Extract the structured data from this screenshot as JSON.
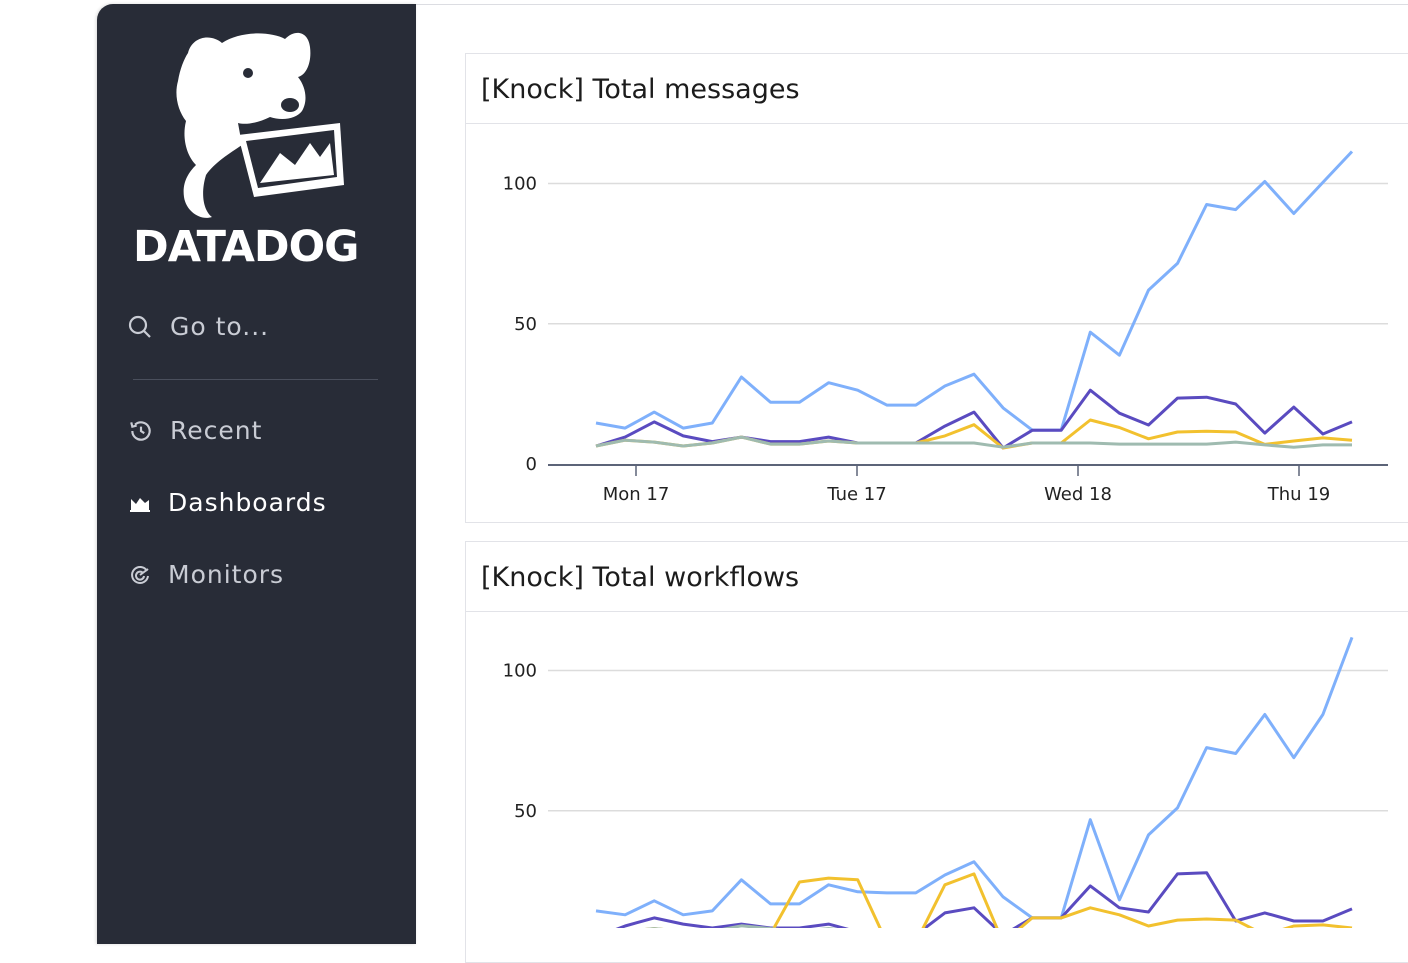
{
  "sidebar": {
    "brand": "DATADOG",
    "search_label": "Go to...",
    "items": [
      {
        "label": "Recent",
        "icon": "history-icon"
      },
      {
        "label": "Dashboards",
        "icon": "dashboard-chart-icon",
        "active": true
      },
      {
        "label": "Monitors",
        "icon": "monitor-radar-icon"
      }
    ]
  },
  "colors": {
    "series": [
      "#7fb0fb",
      "#5a4bc0",
      "#f2c12e",
      "#9fbbb0"
    ],
    "sidebar": "#282c37"
  },
  "chart_data": [
    {
      "type": "line",
      "title": "[Knock] Total messages",
      "yticks": [
        0,
        50,
        100
      ],
      "xticks": [
        "Mon 17",
        "Tue 17",
        "Wed 18",
        "Thu 19"
      ],
      "ylim": [
        0,
        115
      ],
      "grid": true,
      "series": [
        {
          "values": [
            14.6,
            12.8,
            18.5,
            12.8,
            14.6,
            31,
            22,
            22,
            29,
            26.3,
            21,
            21,
            27.8,
            32,
            20,
            12.1,
            12.1,
            47,
            38.8,
            62,
            71.5,
            92.5,
            90.7,
            100.7,
            89.3,
            100.4,
            111.4
          ]
        },
        {
          "values": [
            6.4,
            9.6,
            15,
            10,
            8,
            9.6,
            8,
            8,
            9.6,
            7.5,
            7.5,
            7.5,
            13.5,
            18.5,
            5.7,
            12,
            12,
            26.3,
            18.1,
            13.9,
            23.5,
            23.8,
            21.4,
            11,
            20.3,
            10.7,
            15
          ]
        },
        {
          "values": [
            6.4,
            8.5,
            7.8,
            6.4,
            7.5,
            9.6,
            7.1,
            7.1,
            8.2,
            7.5,
            7.5,
            7.5,
            10,
            14,
            5.7,
            7.5,
            7.5,
            15.7,
            13,
            9,
            11.4,
            11.7,
            11.4,
            7,
            8.2,
            9.3,
            8.5
          ]
        },
        {
          "values": [
            6.4,
            8.5,
            7.8,
            6.4,
            7.5,
            9.6,
            7.1,
            7.1,
            8.2,
            7.5,
            7.5,
            7.5,
            7.5,
            7.5,
            6,
            7.5,
            7.5,
            7.5,
            7.1,
            7.1,
            7.1,
            7.1,
            7.8,
            6.8,
            6,
            6.8,
            6.8
          ]
        }
      ]
    },
    {
      "type": "line",
      "title": "[Knock] Total workflows",
      "yticks": [
        50,
        100
      ],
      "ylim": [
        0,
        115
      ],
      "grid": true,
      "series": [
        {
          "values": [
            14.3,
            12.9,
            17.9,
            12.9,
            14.3,
            25.4,
            16.8,
            16.8,
            23.6,
            21.1,
            20.7,
            20.7,
            27.1,
            31.8,
            19.3,
            11.8,
            11.8,
            46.8,
            18.2,
            41.4,
            51,
            72.5,
            70.4,
            84.3,
            68.9,
            84.3,
            111.8
          ]
        },
        {
          "values": [
            5,
            8.9,
            11.8,
            9.6,
            8.2,
            9.6,
            8.2,
            8.2,
            9.6,
            6.8,
            5.7,
            5.7,
            13.6,
            15.4,
            5.7,
            11.8,
            11.8,
            23.2,
            15.4,
            13.9,
            27.5,
            27.9,
            10.7,
            13.6,
            10.7,
            10.7,
            15
          ]
        },
        {
          "values": [
            5,
            7,
            8,
            7,
            6,
            5,
            6,
            24.6,
            26,
            25.4,
            3,
            3,
            23.6,
            27.5,
            3,
            11.8,
            11.8,
            15.4,
            12.9,
            8.9,
            11,
            11.4,
            11,
            5.7,
            8.9,
            9.3,
            8.2
          ]
        },
        {
          "values": [
            5,
            7,
            8,
            7,
            7,
            9,
            8,
            7,
            8,
            7,
            7,
            7,
            7,
            7,
            6,
            7,
            7,
            7,
            7,
            7,
            7,
            7,
            7,
            6,
            6,
            6,
            6
          ]
        }
      ]
    }
  ]
}
